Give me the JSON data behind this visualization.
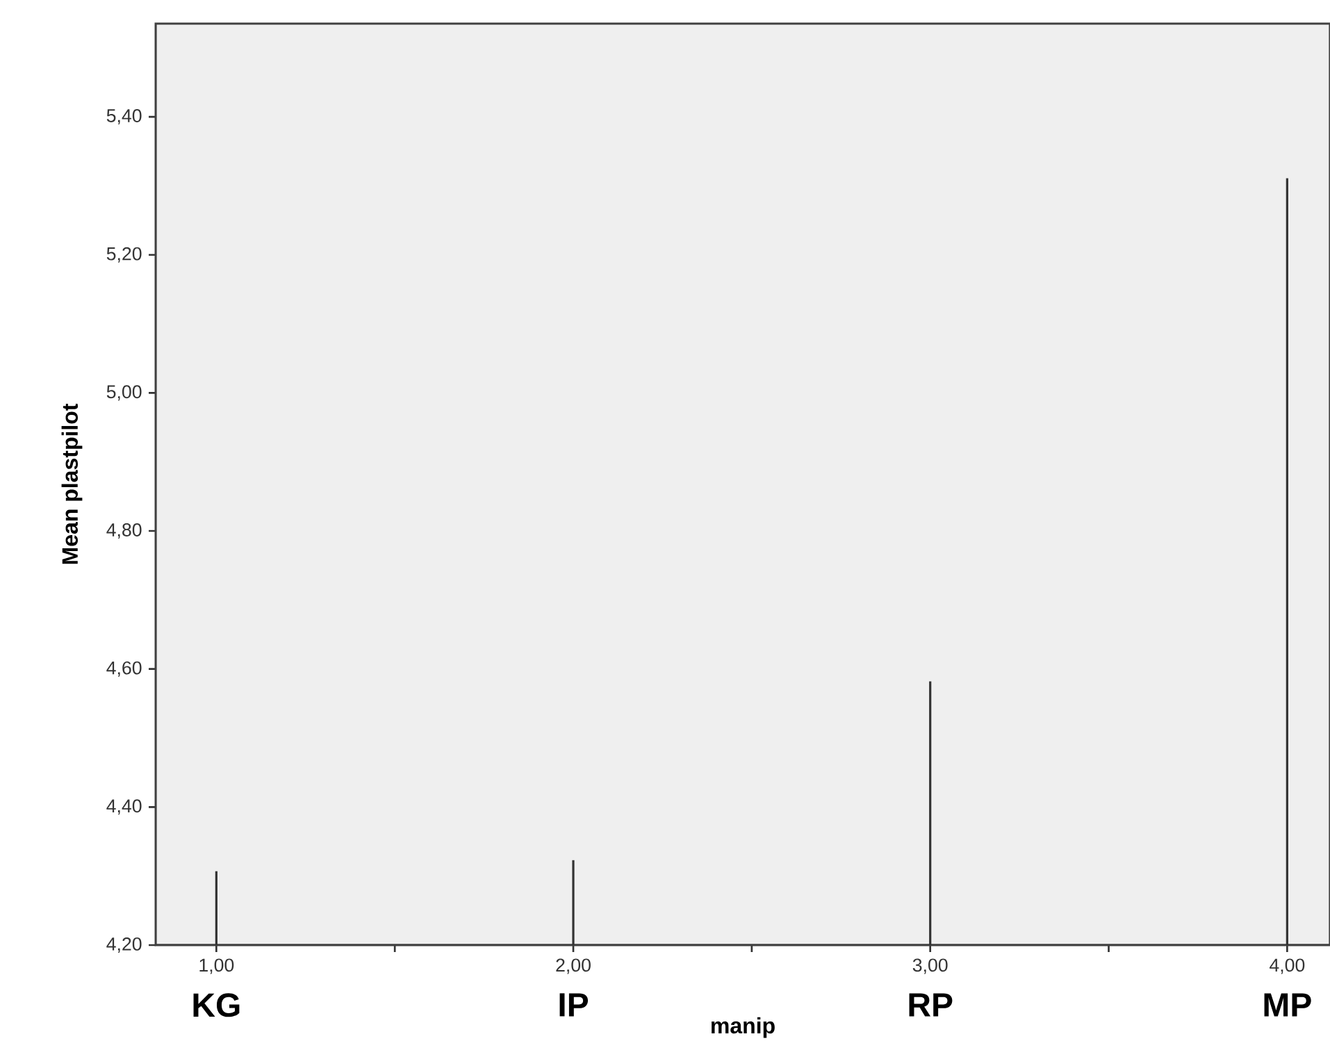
{
  "chart_data": {
    "type": "bar",
    "xlabel": "manip",
    "ylabel": "Mean plastpilot",
    "x": [
      1,
      2,
      3,
      4
    ],
    "values": [
      4.307,
      4.323,
      4.582,
      5.311
    ],
    "color": "#333333",
    "xlim": [
      0.83,
      4.12
    ],
    "ylim": [
      4.2,
      5.535
    ],
    "xticks": [
      {
        "value": 1,
        "label": "1,00"
      },
      {
        "value": 1.5,
        "label": null
      },
      {
        "value": 2,
        "label": "2,00"
      },
      {
        "value": 2.5,
        "label": null
      },
      {
        "value": 3,
        "label": "3,00"
      },
      {
        "value": 3.5,
        "label": null
      },
      {
        "value": 4,
        "label": "4,00"
      }
    ],
    "yticks": [
      {
        "value": 4.2,
        "label": "4,20"
      },
      {
        "value": 4.4,
        "label": "4,40"
      },
      {
        "value": 4.6,
        "label": "4,60"
      },
      {
        "value": 4.8,
        "label": "4,80"
      },
      {
        "value": 5.0,
        "label": "5,00"
      },
      {
        "value": 5.2,
        "label": "5,20"
      },
      {
        "value": 5.4,
        "label": "5,40"
      }
    ],
    "annotations": [
      "KG",
      "IP",
      "RP",
      "MP"
    ]
  }
}
